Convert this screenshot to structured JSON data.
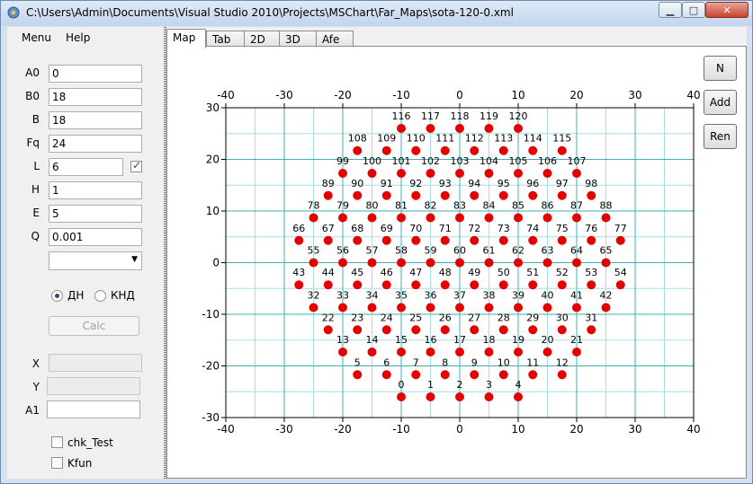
{
  "window": {
    "title": "C:\\Users\\Admin\\Documents\\Visual Studio 2010\\Projects\\MSChart\\Far_Maps\\sota-120-0.xml",
    "min_glyph": "▁",
    "max_glyph": "□",
    "close_glyph": "✕"
  },
  "menu": {
    "menu_label": "Menu",
    "help_label": "Help"
  },
  "params": {
    "a0_label": "A0",
    "a0_value": "0",
    "b0_label": "B0",
    "b0_value": "18",
    "b_label": "B",
    "b_value": "18",
    "fq_label": "Fq",
    "fq_value": "24",
    "l_label": "L",
    "l_value": "6",
    "l_checked": true,
    "h_label": "H",
    "h_value": "1",
    "e_label": "E",
    "e_value": "5",
    "q_label": "Q",
    "q_value": "0.001",
    "combo_value": ""
  },
  "mode": {
    "option1_label": "ДН",
    "option2_label": "КНД",
    "selected": "ДН"
  },
  "calc_label": "Calc",
  "coords": {
    "x_label": "X",
    "x_value": "",
    "y_label": "Y",
    "y_value": "",
    "a1_label": "A1",
    "a1_value": ""
  },
  "checks": {
    "chk_test_label": "chk_Test",
    "kfun_label": "Kfun"
  },
  "tabs": [
    "Map",
    "Tab",
    "2D",
    "3D",
    "Afe"
  ],
  "active_tab": "Map",
  "side_buttons": {
    "n_label": "N",
    "add_label": "Add",
    "ren_label": "Ren"
  },
  "colors": {
    "point": "#e50000",
    "major_grid": "#3fb0b0",
    "minor_grid": "#a8dede"
  },
  "chart_data": {
    "type": "scatter",
    "title": "",
    "xlabel": "",
    "ylabel": "",
    "xlim": [
      -40,
      40
    ],
    "ylim": [
      -30,
      30
    ],
    "x_ticks": [
      -40,
      -30,
      -20,
      -10,
      0,
      10,
      20,
      30,
      40
    ],
    "y_ticks": [
      -30,
      -20,
      -10,
      0,
      10,
      20,
      30
    ],
    "grid": true,
    "rows": [
      {
        "y": -26,
        "x_start": -10,
        "count": 5,
        "first_id": 0
      },
      {
        "y": -21.7,
        "x_start": -17.5,
        "count": 8,
        "first_id": 5
      },
      {
        "y": -17.3,
        "x_start": -20,
        "count": 9,
        "first_id": 13
      },
      {
        "y": -13,
        "x_start": -22.5,
        "count": 10,
        "first_id": 22
      },
      {
        "y": -8.7,
        "x_start": -25,
        "count": 11,
        "first_id": 32
      },
      {
        "y": -4.3,
        "x_start": -27.5,
        "count": 12,
        "first_id": 43
      },
      {
        "y": 0,
        "x_start": -25,
        "count": 11,
        "first_id": 55
      },
      {
        "y": 4.3,
        "x_start": -27.5,
        "count": 12,
        "first_id": 66
      },
      {
        "y": 8.7,
        "x_start": -25,
        "count": 11,
        "first_id": 78
      },
      {
        "y": 13,
        "x_start": -22.5,
        "count": 10,
        "first_id": 89
      },
      {
        "y": 17.3,
        "x_start": -20,
        "count": 9,
        "first_id": 99
      },
      {
        "y": 21.7,
        "x_start": -17.5,
        "count": 8,
        "first_id": 108
      },
      {
        "y": 26,
        "x_start": -10,
        "count": 5,
        "first_id": 116
      }
    ],
    "x_step": 5
  }
}
